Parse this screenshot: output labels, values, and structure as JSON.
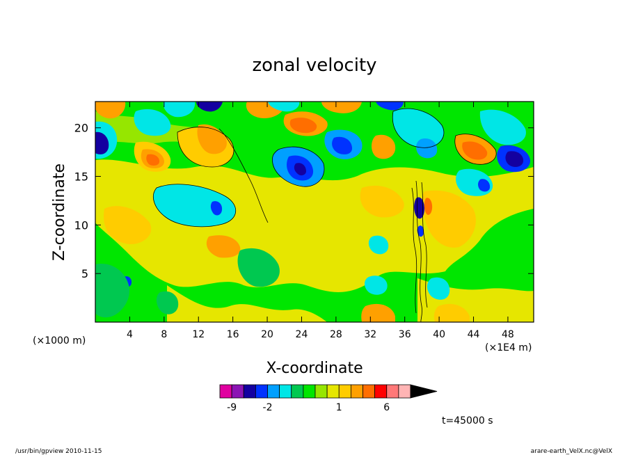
{
  "chart_data": {
    "type": "heatmap",
    "title": "zonal velocity",
    "xlabel": "X-coordinate",
    "ylabel": "Z-coordinate",
    "x_unit_left": "(×1000 m)",
    "x_unit_right": "(×1E4 m)",
    "x_ticks": [
      4,
      8,
      12,
      16,
      20,
      24,
      28,
      32,
      36,
      40,
      44,
      48
    ],
    "y_ticks": [
      5,
      10,
      15,
      20
    ],
    "xlim": [
      0,
      51
    ],
    "ylim": [
      0,
      22.7
    ],
    "colorbar": {
      "levels": [
        -11,
        -9,
        -7,
        -5,
        -2,
        -1.5,
        -1,
        -0.5,
        0,
        0.5,
        1,
        2,
        3,
        4,
        6,
        8,
        10,
        12
      ],
      "colors": [
        "#e000a0",
        "#8c14b4",
        "#1400a0",
        "#0032ff",
        "#00a0ff",
        "#00e6e6",
        "#00c850",
        "#00e600",
        "#96e600",
        "#e6e600",
        "#ffcc00",
        "#ffa000",
        "#ff6e00",
        "#ff0000",
        "#ff7878",
        "#ffb4b4"
      ],
      "tick_labels": [
        "-9",
        "-2",
        "1",
        "6"
      ],
      "tick_values": [
        -9,
        -2,
        1,
        6
      ]
    },
    "time_label": "t=45000 s",
    "footer_left": "/usr/bin/gpview   2010-11-15",
    "footer_right": "arare-earth_VelX.nc@VelX"
  }
}
